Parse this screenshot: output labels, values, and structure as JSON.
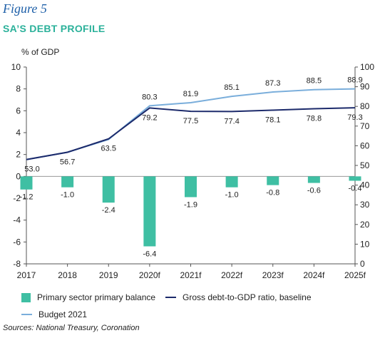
{
  "figure_label": "Figure 5",
  "title": "SA’S DEBT PROFILE",
  "source": "Sources: National Treasury, Coronation",
  "colors": {
    "bars": "#3fbfa3",
    "baseline": "#1c2a6b",
    "budget": "#7aaedb",
    "axis": "#555555",
    "title": "#2bb19a",
    "figure_label": "#1d5fa8"
  },
  "chart_data": {
    "type": "bar+line",
    "categories": [
      "2017",
      "2018",
      "2019",
      "2020f",
      "2021f",
      "2022f",
      "2023f",
      "2024f",
      "2025f"
    ],
    "left_axis": {
      "label": "% of GDP",
      "range": [
        -8,
        10
      ],
      "ticks": [
        -8,
        -6,
        -4,
        -2,
        0,
        2,
        4,
        6,
        8,
        10
      ]
    },
    "right_axis": {
      "label": "",
      "range": [
        0,
        100
      ],
      "ticks": [
        0,
        10,
        20,
        30,
        40,
        50,
        60,
        70,
        80,
        90,
        100
      ]
    },
    "series": [
      {
        "name": "Primary sector primary balance",
        "type": "bar",
        "axis": "left",
        "values": [
          -1.2,
          -1.0,
          -2.4,
          -6.4,
          -1.9,
          -1.0,
          -0.8,
          -0.6,
          -0.4
        ],
        "labels": [
          "-1.2",
          "-1.0",
          "-2.4",
          "-6.4",
          "-1.9",
          "-1.0",
          "-0.8",
          "-0.6",
          "-0.4"
        ]
      },
      {
        "name": "Gross debt-to-GDP ratio, baseline",
        "type": "line",
        "axis": "right",
        "values": [
          53.0,
          56.7,
          63.5,
          79.2,
          77.5,
          77.4,
          78.1,
          78.8,
          79.3
        ],
        "labels": [
          "53.0",
          "56.7",
          "63.5",
          "79.2",
          "77.5",
          "77.4",
          "78.1",
          "78.8",
          "79.3"
        ]
      },
      {
        "name": "Budget 2021",
        "type": "line",
        "axis": "right",
        "values": [
          53.0,
          56.7,
          63.2,
          80.3,
          81.9,
          85.1,
          87.3,
          88.5,
          88.9
        ],
        "labels": [
          "",
          "",
          "",
          "80.3",
          "81.9",
          "85.1",
          "87.3",
          "88.5",
          "88.9"
        ]
      }
    ],
    "grid": false,
    "legend_position": "bottom"
  }
}
